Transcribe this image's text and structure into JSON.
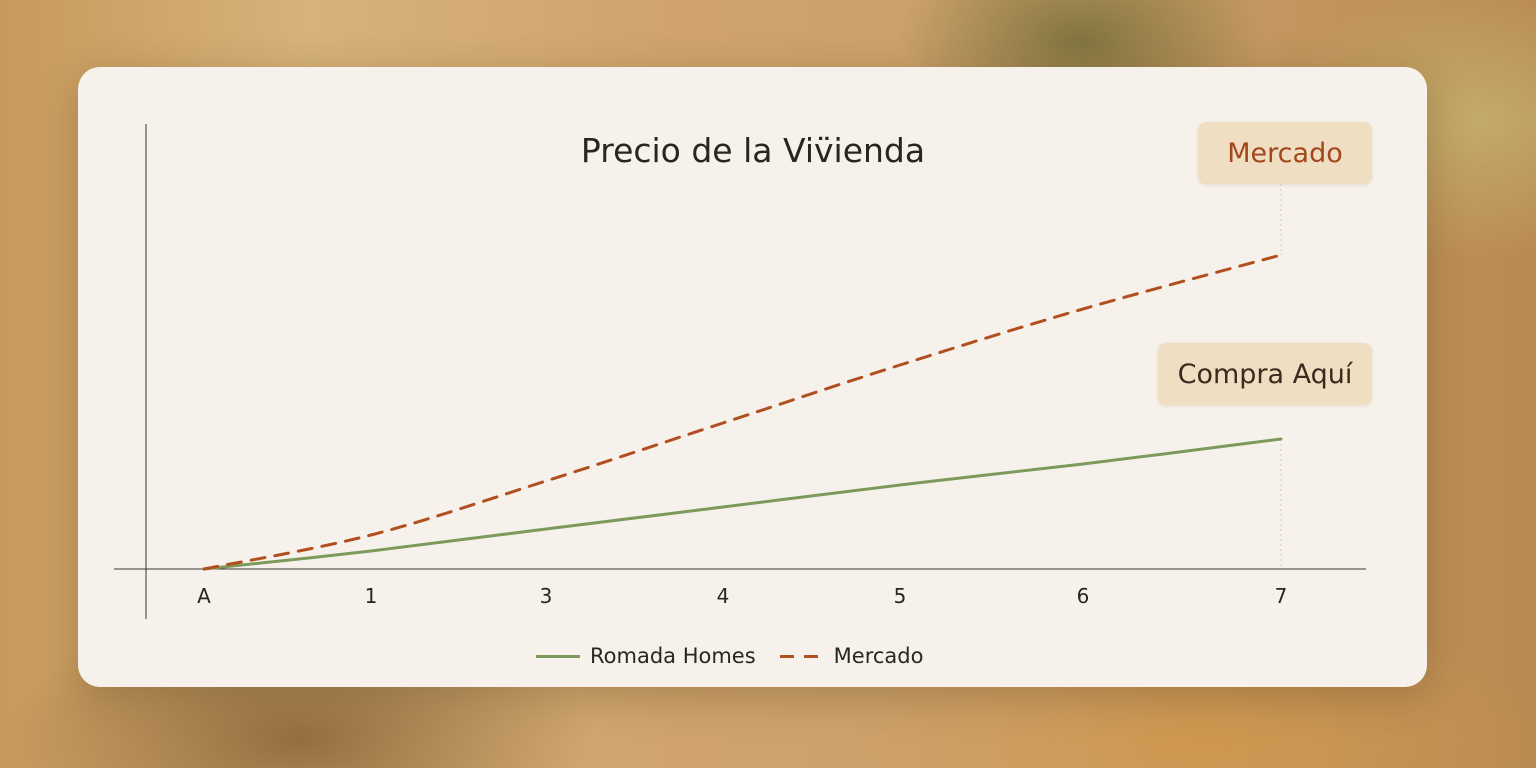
{
  "chart_data": {
    "type": "line",
    "title": "Precio de la Viv̈ienda",
    "xlabel": "",
    "ylabel": "",
    "categories": [
      "A",
      "1",
      "3",
      "4",
      "5",
      "6",
      "7"
    ],
    "series": [
      {
        "name": "Romada Homes",
        "color": "#7d9a5c",
        "style": "solid",
        "values": [
          0,
          9,
          20,
          31,
          42,
          52.5,
          65
        ]
      },
      {
        "name": "Mercado",
        "color": "#b24f20",
        "style": "dashed",
        "values": [
          0,
          17,
          44,
          73,
          102,
          130,
          157
        ]
      }
    ],
    "annotations": [
      {
        "text": "Mercado",
        "series": "Mercado",
        "category": "7"
      },
      {
        "text": "Compra Aquí",
        "series": "Romada Homes",
        "category": "7"
      }
    ],
    "ylim": [
      0,
      200
    ],
    "grid": false,
    "legend": "bottom"
  }
}
